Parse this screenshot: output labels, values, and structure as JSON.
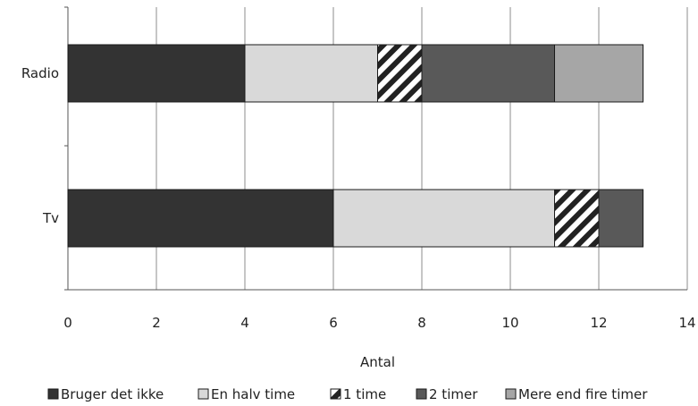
{
  "chart_data": {
    "type": "bar",
    "orientation": "horizontal",
    "stacked": true,
    "categories": [
      "Radio",
      "Tv"
    ],
    "series": [
      {
        "name": "Bruger det ikke",
        "values": [
          4,
          6
        ],
        "color": "#333333",
        "pattern": "solid"
      },
      {
        "name": "En halv time",
        "values": [
          3,
          5
        ],
        "color": "#d9d9d9",
        "pattern": "solid"
      },
      {
        "name": "1 time",
        "values": [
          1,
          1
        ],
        "color": "#222222",
        "pattern": "diagonal-stripes"
      },
      {
        "name": "2 timer",
        "values": [
          3,
          1
        ],
        "color": "#595959",
        "pattern": "solid"
      },
      {
        "name": "Mere end fire timer",
        "values": [
          2,
          0
        ],
        "color": "#a6a6a6",
        "pattern": "solid"
      }
    ],
    "xlabel": "Antal",
    "ylabel": "",
    "xlim": [
      0,
      14
    ],
    "xticks": [
      "0",
      "2",
      "4",
      "6",
      "8",
      "10",
      "12",
      "14"
    ],
    "grid": true,
    "legend_position": "bottom"
  }
}
